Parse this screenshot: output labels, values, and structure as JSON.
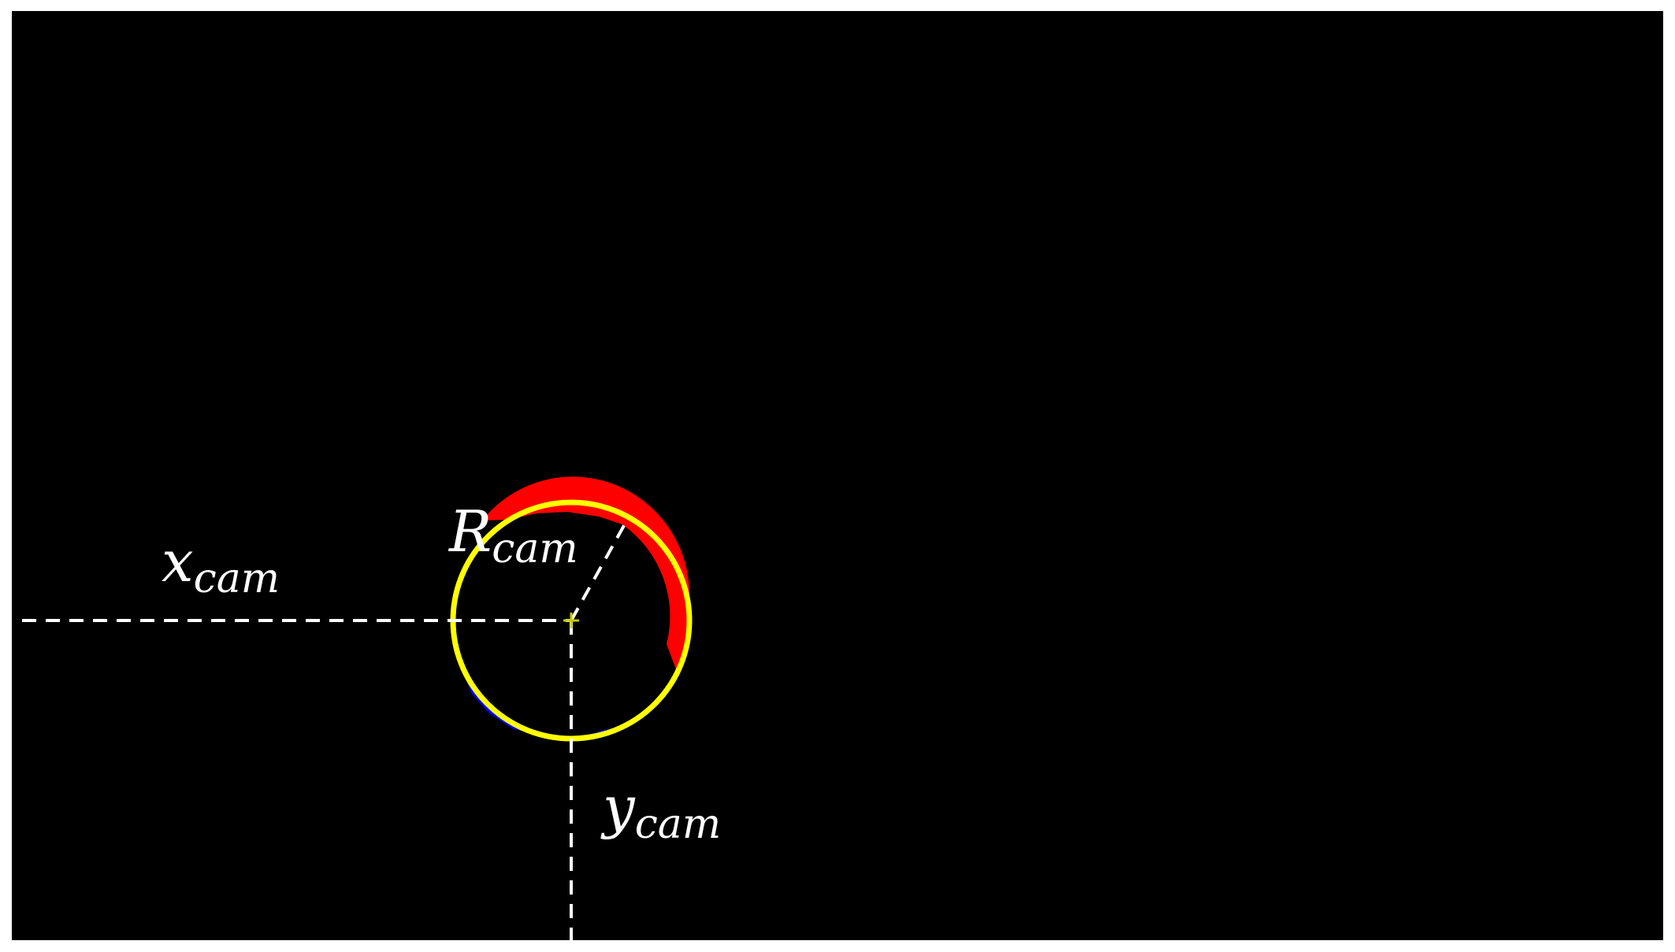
{
  "frame": {
    "background_color": "#000000",
    "border_color": "#ffffff"
  },
  "colors": {
    "fitted_circle": "#ffff00",
    "upper_blob": "#ff0000",
    "lower_blob": "#0000ff",
    "guide_lines": "#ffffff",
    "center_marker": "#c8c800"
  },
  "labels": {
    "x": {
      "main": "x",
      "sub": "cam"
    },
    "y": {
      "main": "y",
      "sub": "cam"
    },
    "r": {
      "main": "R",
      "sub": "cam"
    }
  }
}
